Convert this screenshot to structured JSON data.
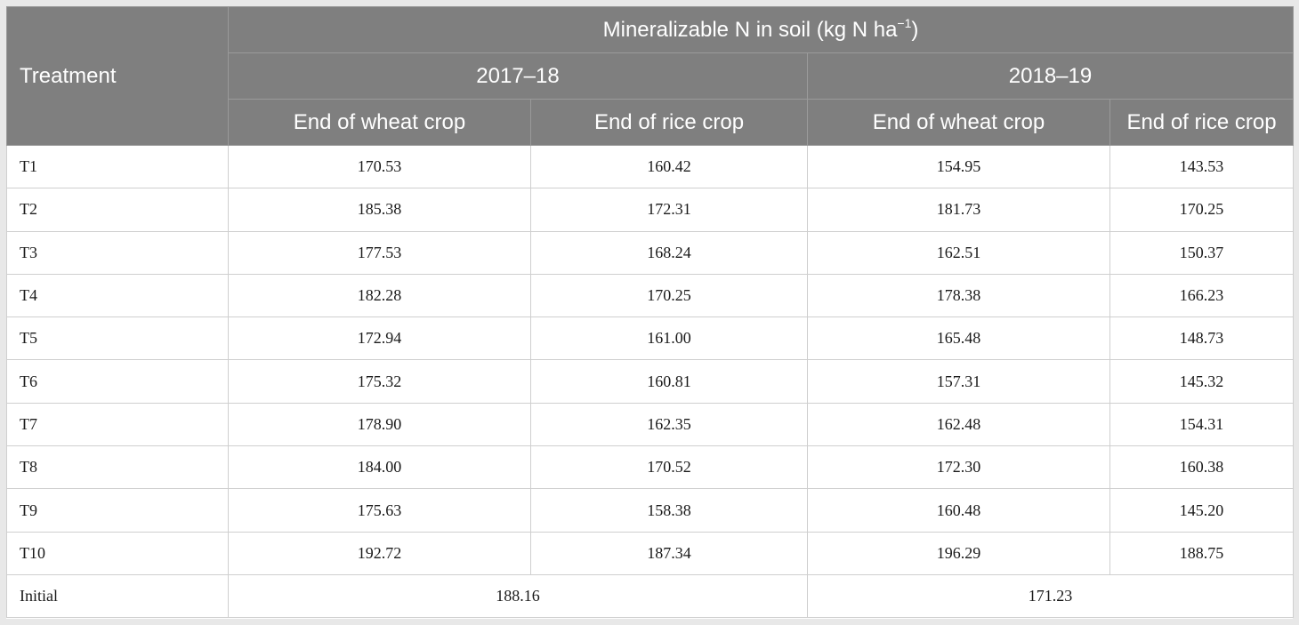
{
  "table": {
    "header": {
      "treatment": "Treatment",
      "group_title": "Mineralizable N in soil (kg N ha",
      "group_title_sup": "−1",
      "group_title_close": ")",
      "years": [
        "2017–18",
        "2018–19"
      ],
      "subcols": [
        "End of wheat crop",
        "End of rice crop",
        "End of wheat crop",
        "End of rice crop"
      ]
    },
    "rows": [
      {
        "label": "T1",
        "values": [
          "170.53",
          "160.42",
          "154.95",
          "143.53"
        ]
      },
      {
        "label": "T2",
        "values": [
          "185.38",
          "172.31",
          "181.73",
          "170.25"
        ]
      },
      {
        "label": "T3",
        "values": [
          "177.53",
          "168.24",
          "162.51",
          "150.37"
        ]
      },
      {
        "label": "T4",
        "values": [
          "182.28",
          "170.25",
          "178.38",
          "166.23"
        ]
      },
      {
        "label": "T5",
        "values": [
          "172.94",
          "161.00",
          "165.48",
          "148.73"
        ]
      },
      {
        "label": "T6",
        "values": [
          "175.32",
          "160.81",
          "157.31",
          "145.32"
        ]
      },
      {
        "label": "T7",
        "values": [
          "178.90",
          "162.35",
          "162.48",
          "154.31"
        ]
      },
      {
        "label": "T8",
        "values": [
          "184.00",
          "170.52",
          "172.30",
          "160.38"
        ]
      },
      {
        "label": "T9",
        "values": [
          "175.63",
          "158.38",
          "160.48",
          "145.20"
        ]
      },
      {
        "label": "T10",
        "values": [
          "192.72",
          "187.34",
          "196.29",
          "188.75"
        ]
      }
    ],
    "initial": {
      "label": "Initial",
      "values": [
        "188.16",
        "171.23"
      ]
    }
  }
}
